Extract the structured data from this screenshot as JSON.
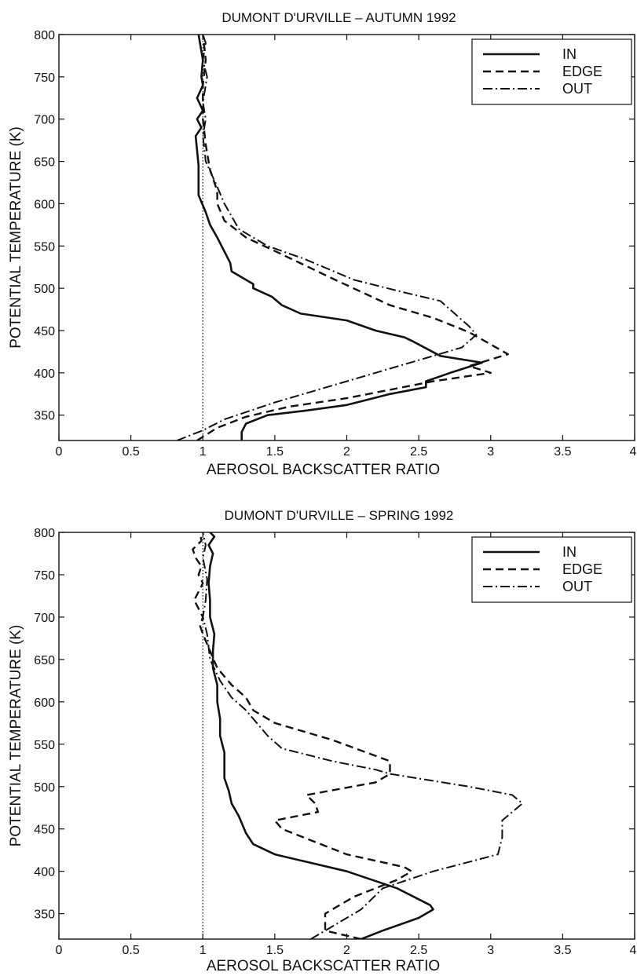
{
  "chart_data": [
    {
      "type": "line",
      "title": "DUMONT D'URVILLE – AUTUMN 1992",
      "xlabel": "AEROSOL BACKSCATTER RATIO",
      "ylabel": "POTENTIAL TEMPERATURE (K)",
      "xlim": [
        0,
        4
      ],
      "ylim": [
        320,
        800
      ],
      "xticks": [
        "0",
        "0.5",
        "1",
        "1.5",
        "2",
        "2.5",
        "3",
        "3.5",
        "4"
      ],
      "yticks": [
        "350",
        "400",
        "450",
        "500",
        "550",
        "600",
        "650",
        "700",
        "750",
        "800"
      ],
      "reference_line_x": 1,
      "legend_position": "top-right",
      "series": [
        {
          "name": "IN",
          "style": "solid",
          "x": [
            1.27,
            1.27,
            1.3,
            1.45,
            1.7,
            2.0,
            2.3,
            2.55,
            2.55,
            2.72,
            2.94,
            2.65,
            2.45,
            2.4,
            2.2,
            2.0,
            1.68,
            1.55,
            1.48,
            1.35,
            1.35,
            1.2,
            1.19,
            1.1,
            1.05,
            1.02,
            1.0,
            0.97,
            0.97,
            0.95,
            0.99,
            0.96,
            1.0,
            0.96,
            1.0,
            0.99,
            1.0,
            0.98,
            0.97
          ],
          "y": [
            320,
            330,
            340,
            350,
            355,
            362,
            375,
            383,
            390,
            400,
            412,
            420,
            438,
            442,
            450,
            462,
            470,
            480,
            490,
            500,
            505,
            520,
            530,
            560,
            575,
            590,
            598,
            610,
            645,
            680,
            690,
            700,
            710,
            725,
            740,
            750,
            770,
            790,
            800
          ]
        },
        {
          "name": "EDGE",
          "style": "dashed",
          "x": [
            0.96,
            1.1,
            1.3,
            1.6,
            2.0,
            2.3,
            2.6,
            3.0,
            2.85,
            3.12,
            2.85,
            2.6,
            2.3,
            1.92,
            1.55,
            1.3,
            1.15,
            1.1,
            1.1,
            1.05,
            1.02,
            1.0,
            1.0,
            1.02,
            1.0
          ],
          "y": [
            320,
            335,
            348,
            360,
            370,
            380,
            390,
            400,
            408,
            422,
            448,
            465,
            480,
            510,
            540,
            560,
            580,
            600,
            615,
            640,
            670,
            700,
            740,
            770,
            800
          ]
        },
        {
          "name": "OUT",
          "style": "dashdot",
          "x": [
            0.82,
            1.0,
            1.15,
            1.5,
            1.9,
            2.2,
            2.5,
            2.8,
            2.9,
            2.85,
            2.65,
            2.4,
            2.05,
            1.7,
            1.45,
            1.25,
            1.15,
            1.1,
            1.02,
            1.0,
            1.02,
            1.0,
            1.03,
            1.0,
            1.02,
            1.0
          ],
          "y": [
            320,
            332,
            345,
            365,
            385,
            400,
            415,
            430,
            445,
            455,
            485,
            495,
            510,
            535,
            550,
            570,
            600,
            620,
            650,
            680,
            700,
            720,
            750,
            770,
            790,
            800
          ]
        }
      ]
    },
    {
      "type": "line",
      "title": "DUMONT D'URVILLE – SPRING 1992",
      "xlabel": "AEROSOL BACKSCATTER RATIO",
      "ylabel": "POTENTIAL TEMPERATURE (K)",
      "xlim": [
        0,
        4
      ],
      "ylim": [
        320,
        800
      ],
      "xticks": [
        "0",
        "0.5",
        "1",
        "1.5",
        "2",
        "2.5",
        "3",
        "3.5",
        "4"
      ],
      "yticks": [
        "350",
        "400",
        "450",
        "500",
        "550",
        "600",
        "650",
        "700",
        "750",
        "800"
      ],
      "reference_line_x": 1,
      "legend_position": "top-right",
      "series": [
        {
          "name": "IN",
          "style": "solid",
          "x": [
            2.1,
            2.25,
            2.5,
            2.6,
            2.58,
            2.35,
            2.0,
            1.75,
            1.5,
            1.35,
            1.3,
            1.25,
            1.2,
            1.18,
            1.15,
            1.15,
            1.12,
            1.12,
            1.1,
            1.1,
            1.07,
            1.07,
            1.08,
            1.05,
            1.05,
            1.04,
            1.05,
            1.07,
            1.04,
            1.08,
            1.05
          ],
          "y": [
            320,
            330,
            345,
            355,
            360,
            380,
            400,
            410,
            420,
            432,
            445,
            465,
            480,
            495,
            510,
            540,
            560,
            580,
            600,
            620,
            640,
            660,
            680,
            700,
            720,
            740,
            760,
            775,
            785,
            795,
            800
          ]
        },
        {
          "name": "EDGE",
          "style": "dashed",
          "x": [
            2.1,
            1.85,
            1.85,
            2.05,
            2.35,
            2.45,
            2.4,
            2.0,
            1.55,
            1.5,
            1.8,
            1.78,
            1.72,
            2.2,
            2.3,
            2.3,
            1.9,
            1.5,
            1.35,
            1.3,
            1.2,
            1.1,
            1.05,
            1.0,
            0.98,
            1.0,
            0.94,
            1.0,
            0.97,
            0.99,
            0.95,
            0.93,
            0.99,
            0.98
          ],
          "y": [
            320,
            330,
            350,
            370,
            390,
            400,
            405,
            420,
            450,
            460,
            470,
            480,
            490,
            505,
            515,
            530,
            555,
            575,
            590,
            605,
            620,
            640,
            660,
            680,
            690,
            700,
            720,
            740,
            750,
            760,
            770,
            780,
            790,
            800
          ]
        },
        {
          "name": "OUT",
          "style": "dashdot",
          "x": [
            1.75,
            2.0,
            2.1,
            2.25,
            2.6,
            3.05,
            3.08,
            3.08,
            3.22,
            3.15,
            2.85,
            2.3,
            2.2,
            1.9,
            1.55,
            1.45,
            1.3,
            1.2,
            1.12,
            1.05,
            1.03,
            1.0,
            1.02,
            1.03,
            1.0,
            1.02,
            1.0
          ],
          "y": [
            320,
            345,
            355,
            380,
            400,
            420,
            440,
            460,
            480,
            490,
            500,
            515,
            520,
            530,
            545,
            560,
            590,
            605,
            625,
            650,
            680,
            700,
            720,
            745,
            770,
            785,
            800
          ]
        }
      ]
    }
  ]
}
